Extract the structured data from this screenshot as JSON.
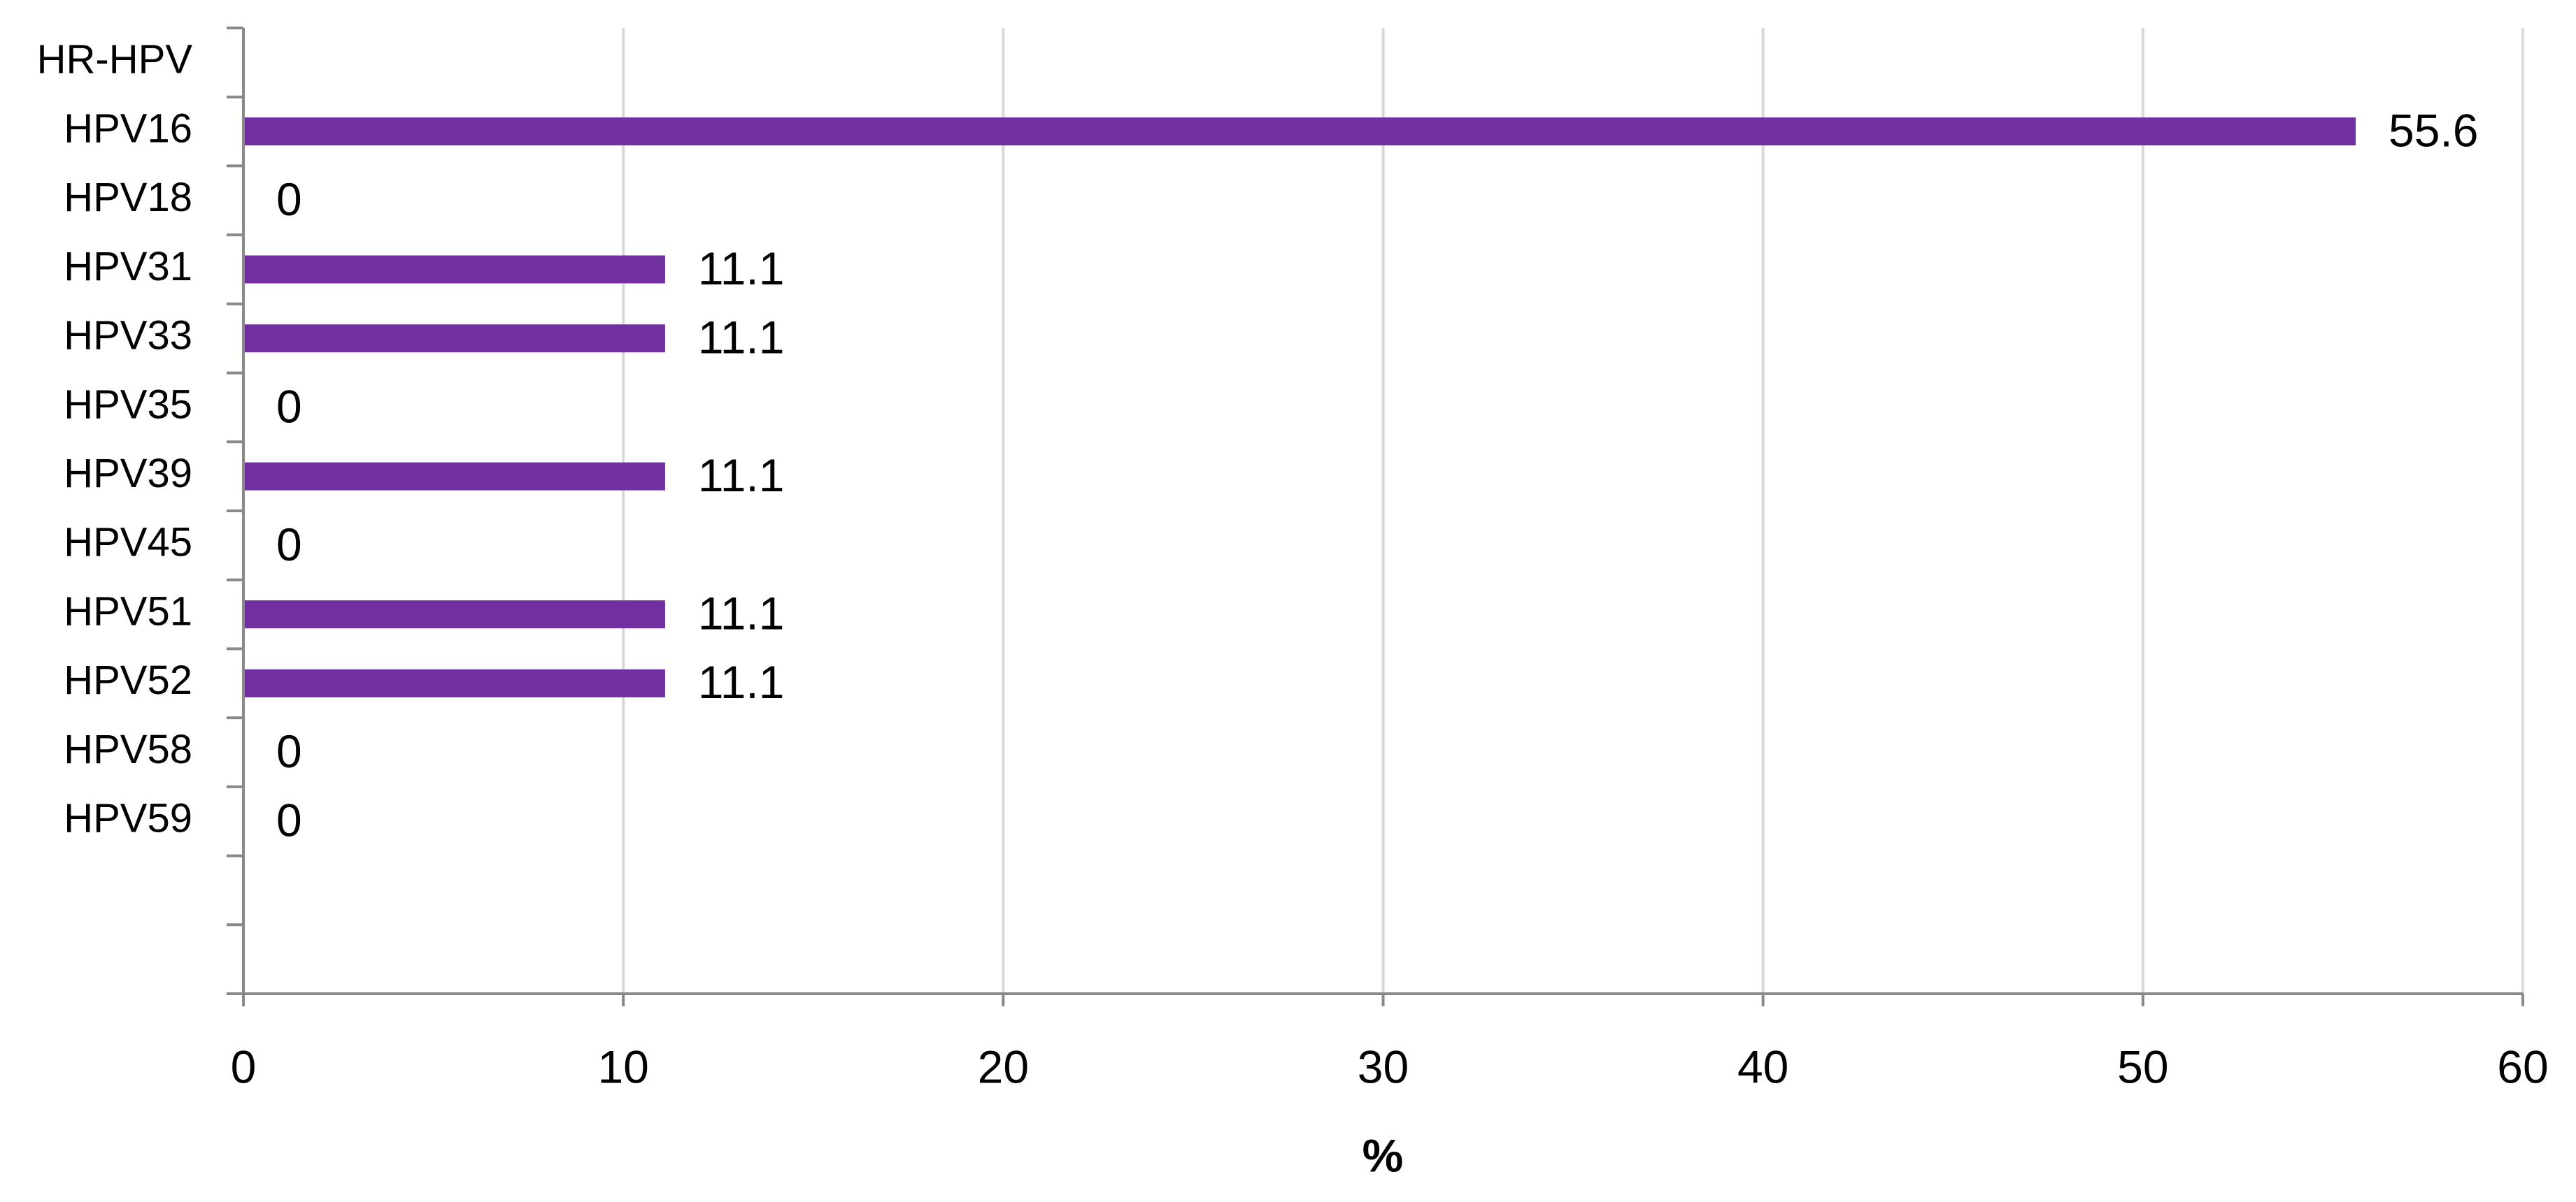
{
  "chart_data": {
    "type": "bar",
    "orientation": "horizontal",
    "categories": [
      "HR-HPV",
      "HPV16",
      "HPV18",
      "HPV31",
      "HPV33",
      "HPV35",
      "HPV39",
      "HPV45",
      "HPV51",
      "HPV52",
      "HPV58",
      "HPV59",
      null,
      null
    ],
    "values": [
      null,
      55.6,
      0,
      11.1,
      11.1,
      0,
      11.1,
      0,
      11.1,
      11.1,
      0,
      0,
      null,
      null
    ],
    "color": "#7030a0",
    "xlabel": "%",
    "xlim": [
      0,
      60
    ],
    "xticks": [
      0,
      10,
      20,
      30,
      40,
      50,
      60
    ],
    "grid": true
  }
}
